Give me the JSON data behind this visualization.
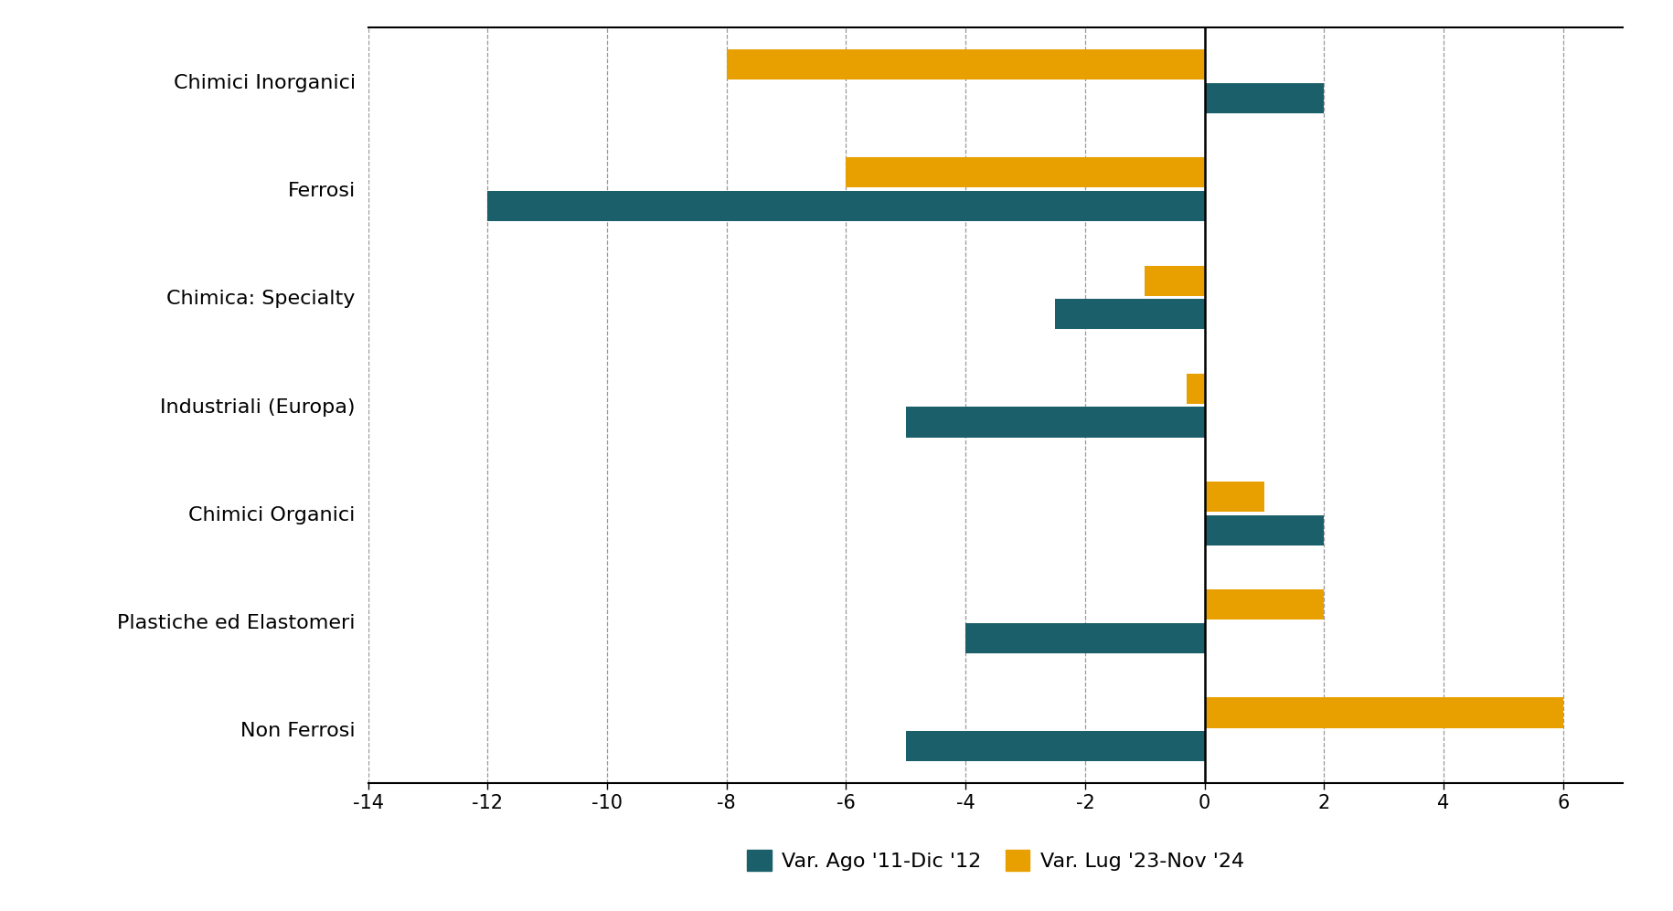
{
  "categories": [
    "Chimici Inorganici",
    "Ferrosi",
    "Chimica: Specialty",
    "Industriali (Europa)",
    "Chimici Organici",
    "Plastiche ed Elastomeri",
    "Non Ferrosi"
  ],
  "series1_label": "Var. Ago '11-Dic '12",
  "series2_label": "Var. Lug '23-Nov '24",
  "series1_values": [
    2.0,
    -12.0,
    -2.5,
    -5.0,
    2.0,
    -4.0,
    -5.0
  ],
  "series2_values": [
    -8.0,
    -6.0,
    -1.0,
    -0.3,
    1.0,
    2.0,
    6.0
  ],
  "series1_color": "#1a5f6a",
  "series2_color": "#e8a000",
  "xlim": [
    -14,
    7
  ],
  "xticks": [
    -14,
    -12,
    -10,
    -8,
    -6,
    -4,
    -2,
    0,
    2,
    4,
    6
  ],
  "background_color": "#ffffff",
  "bar_height": 0.28,
  "bar_gap": 0.03,
  "grid_color": "#999999",
  "label_fontsize": 16,
  "tick_fontsize": 15,
  "legend_fontsize": 16
}
